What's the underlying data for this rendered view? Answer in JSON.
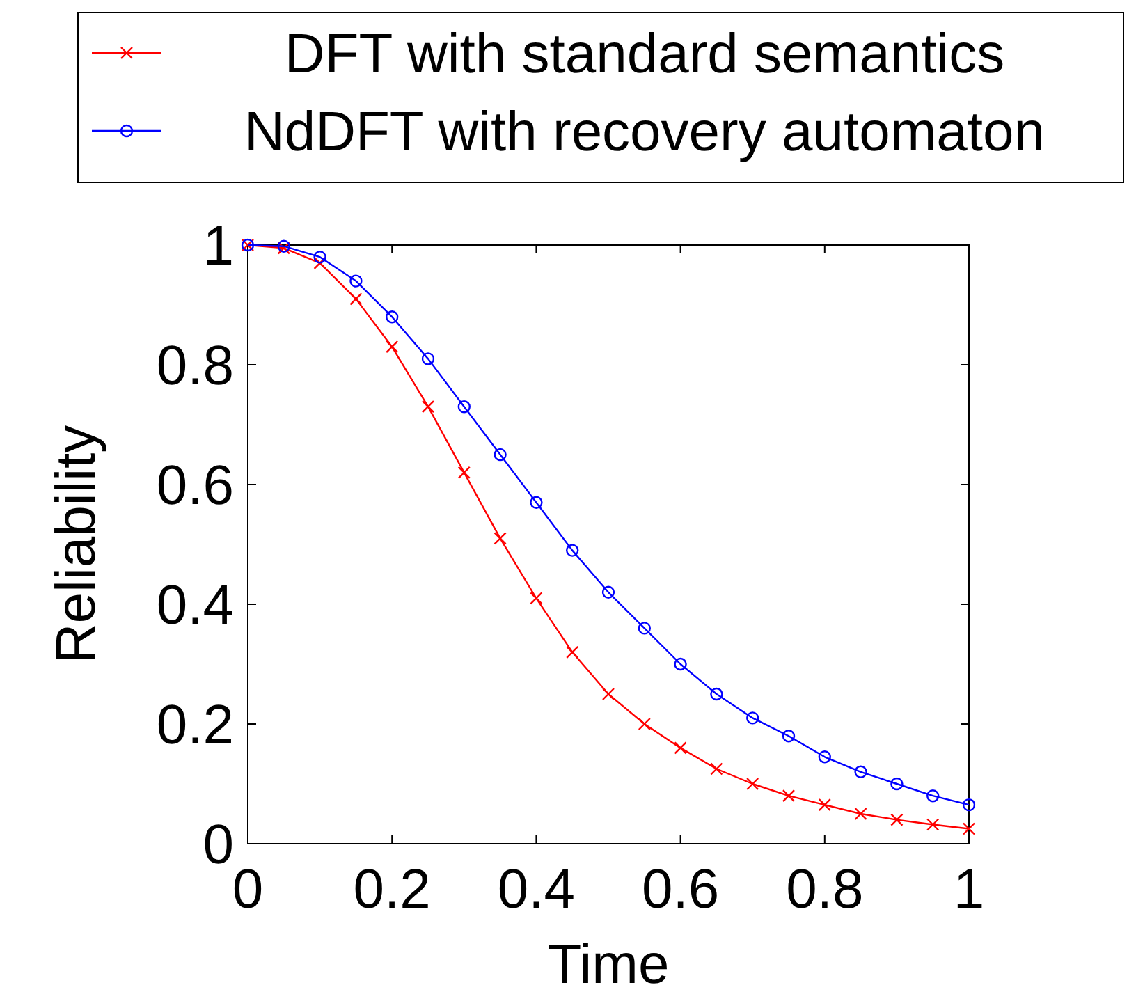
{
  "chart_data": {
    "type": "line",
    "xlabel": "Time",
    "ylabel": "Reliability",
    "x": [
      0,
      0.05,
      0.1,
      0.15,
      0.2,
      0.25,
      0.3,
      0.35,
      0.4,
      0.45,
      0.5,
      0.55,
      0.6,
      0.65,
      0.7,
      0.75,
      0.8,
      0.85,
      0.9,
      0.95,
      1
    ],
    "series": [
      {
        "name": "DFT with standard semantics",
        "color": "#ff0000",
        "marker": "cross",
        "values": [
          1,
          0.995,
          0.97,
          0.91,
          0.83,
          0.73,
          0.62,
          0.51,
          0.41,
          0.32,
          0.25,
          0.2,
          0.16,
          0.125,
          0.1,
          0.08,
          0.065,
          0.05,
          0.04,
          0.032,
          0.025
        ]
      },
      {
        "name": "NdDFT with recovery automaton",
        "color": "#0000ff",
        "marker": "circle",
        "values": [
          1,
          0.998,
          0.98,
          0.94,
          0.88,
          0.81,
          0.73,
          0.65,
          0.57,
          0.49,
          0.42,
          0.36,
          0.3,
          0.25,
          0.21,
          0.18,
          0.145,
          0.12,
          0.1,
          0.08,
          0.065
        ]
      }
    ],
    "xlim": [
      0,
      1
    ],
    "ylim": [
      0,
      1
    ],
    "xticks": [
      0,
      0.2,
      0.4,
      0.6,
      0.8,
      1
    ],
    "yticks": [
      0,
      0.2,
      0.4,
      0.6,
      0.8,
      1
    ],
    "grid": false,
    "legend": "top",
    "line_style": "solid"
  }
}
